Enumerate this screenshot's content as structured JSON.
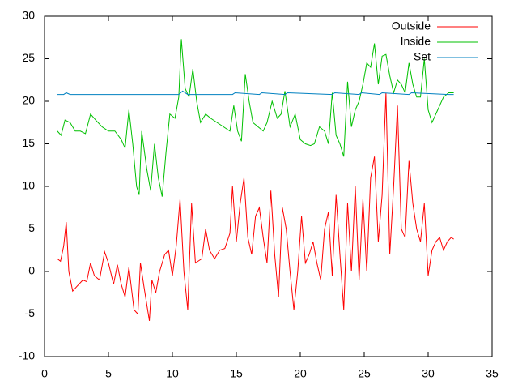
{
  "chart_data": {
    "type": "line",
    "xlim": [
      0,
      35
    ],
    "xticks": [
      0,
      5,
      10,
      15,
      20,
      25,
      30,
      35
    ],
    "ylim": [
      -10,
      30
    ],
    "yticks": [
      -10,
      -5,
      0,
      5,
      10,
      15,
      20,
      25,
      30
    ],
    "legend": "top-right",
    "series": [
      {
        "name": "Outside",
        "color": "#ff0000",
        "x": [
          1.0,
          1.25,
          1.5,
          1.7,
          1.9,
          2.2,
          2.5,
          3.0,
          3.3,
          3.6,
          3.9,
          4.3,
          4.7,
          5.0,
          5.4,
          5.7,
          6.0,
          6.3,
          6.6,
          7.0,
          7.3,
          7.5,
          7.8,
          8.2,
          8.4,
          8.7,
          9.0,
          9.4,
          9.7,
          10.0,
          10.3,
          10.6,
          10.9,
          11.2,
          11.5,
          11.8,
          12.3,
          12.6,
          12.9,
          13.3,
          13.7,
          14.1,
          14.5,
          14.7,
          15.0,
          15.3,
          15.6,
          15.9,
          16.2,
          16.5,
          16.8,
          17.1,
          17.4,
          17.7,
          18.0,
          18.3,
          18.6,
          18.9,
          19.2,
          19.5,
          19.8,
          20.1,
          20.4,
          20.7,
          21.0,
          21.3,
          21.6,
          21.9,
          22.2,
          22.5,
          22.8,
          23.1,
          23.4,
          23.7,
          24.0,
          24.3,
          24.6,
          24.9,
          25.2,
          25.5,
          25.8,
          26.1,
          26.4,
          26.7,
          27.0,
          27.3,
          27.6,
          27.9,
          28.2,
          28.5,
          28.8,
          29.1,
          29.4,
          29.7,
          30.0,
          30.3,
          30.6,
          30.9,
          31.2,
          31.5,
          31.8,
          32.0
        ],
        "values": [
          1.5,
          1.2,
          3,
          5.8,
          0,
          -2.3,
          -1.8,
          -1,
          -1.2,
          1,
          -0.5,
          -1,
          2.3,
          1,
          -1.5,
          0.8,
          -1.5,
          -3,
          0.5,
          -4.5,
          -5,
          1,
          -2,
          -5.8,
          -1,
          -2.5,
          0,
          2,
          2.5,
          -0.5,
          3,
          8.5,
          0,
          -4.5,
          8,
          1,
          1.5,
          5,
          2.5,
          1.5,
          2.5,
          2.7,
          4.5,
          10,
          3.5,
          8,
          11,
          4,
          2,
          6.5,
          7.5,
          4,
          1,
          9.5,
          2,
          -3,
          7.5,
          5,
          0,
          -4.5,
          0,
          6.5,
          1,
          2,
          3.5,
          1,
          -1,
          5,
          7,
          -0.5,
          9,
          2,
          -4.5,
          8,
          0,
          10,
          -1,
          8.5,
          0,
          11,
          13.5,
          3.5,
          9,
          21,
          2,
          10,
          19.5,
          5,
          4,
          13,
          8,
          5,
          3.5,
          8,
          -0.5,
          2.5,
          3.5,
          4,
          2.5,
          3.5,
          4,
          3.8
        ]
      },
      {
        "name": "Inside",
        "color": "#00c000",
        "x": [
          1.0,
          1.3,
          1.6,
          2.0,
          2.4,
          2.8,
          3.2,
          3.6,
          4.0,
          4.5,
          5.0,
          5.5,
          6.0,
          6.3,
          6.6,
          6.9,
          7.2,
          7.4,
          7.6,
          8.0,
          8.3,
          8.6,
          8.9,
          9.2,
          9.5,
          9.8,
          10.2,
          10.5,
          10.7,
          11.0,
          11.3,
          11.6,
          11.9,
          12.2,
          12.6,
          13.0,
          13.5,
          14.0,
          14.5,
          14.8,
          15.1,
          15.4,
          15.7,
          16.0,
          16.3,
          16.7,
          17.1,
          17.4,
          17.8,
          18.2,
          18.5,
          18.8,
          19.2,
          19.6,
          20.0,
          20.4,
          20.8,
          21.1,
          21.5,
          21.9,
          22.2,
          22.5,
          22.8,
          23.1,
          23.4,
          23.7,
          24.0,
          24.3,
          24.6,
          24.9,
          25.2,
          25.5,
          25.8,
          26.1,
          26.4,
          26.7,
          27.0,
          27.3,
          27.6,
          27.9,
          28.2,
          28.5,
          28.8,
          29.1,
          29.4,
          29.7,
          30.0,
          30.3,
          30.6,
          30.9,
          31.2,
          31.6,
          32.0
        ],
        "values": [
          16.5,
          16,
          17.8,
          17.5,
          16.5,
          16.5,
          16.2,
          18.5,
          17.8,
          17,
          16.5,
          16.5,
          15.5,
          14.5,
          19,
          15,
          10,
          9,
          16.5,
          12,
          9.5,
          15,
          11,
          8.8,
          14,
          18.5,
          18,
          20.5,
          27.3,
          21.5,
          20.5,
          23.8,
          20,
          17.5,
          18.5,
          18,
          17.5,
          17,
          16.5,
          19.5,
          16.5,
          15.3,
          23.2,
          20,
          17.5,
          17,
          16.5,
          17.5,
          20,
          18,
          18.5,
          21.2,
          17,
          18.5,
          15.5,
          15,
          14.8,
          15,
          17,
          16.5,
          15,
          21,
          16,
          15,
          13.5,
          22.3,
          17,
          19,
          20,
          22,
          24.5,
          24,
          26.8,
          22,
          25.3,
          25.5,
          23,
          21,
          22.5,
          22,
          21,
          24.5,
          22,
          20.5,
          20.5,
          25,
          19,
          17.5,
          18.5,
          19.5,
          20.5,
          21,
          21
        ]
      },
      {
        "name": "Set",
        "color": "#0080c0",
        "x": [
          1.0,
          1.5,
          1.7,
          2.0,
          10.5,
          10.8,
          11.2,
          14.7,
          14.9,
          16.8,
          17.0,
          18.8,
          19.0,
          22.5,
          22.7,
          24.6,
          24.8,
          26.2,
          26.4,
          28.5,
          28.7,
          31.6,
          32.0
        ],
        "values": [
          20.8,
          20.8,
          21,
          20.8,
          20.8,
          21.2,
          20.8,
          20.8,
          21,
          20.8,
          21,
          20.8,
          21,
          20.8,
          21,
          20.8,
          21,
          20.8,
          21,
          20.8,
          21,
          20.8,
          20.8
        ]
      }
    ]
  }
}
